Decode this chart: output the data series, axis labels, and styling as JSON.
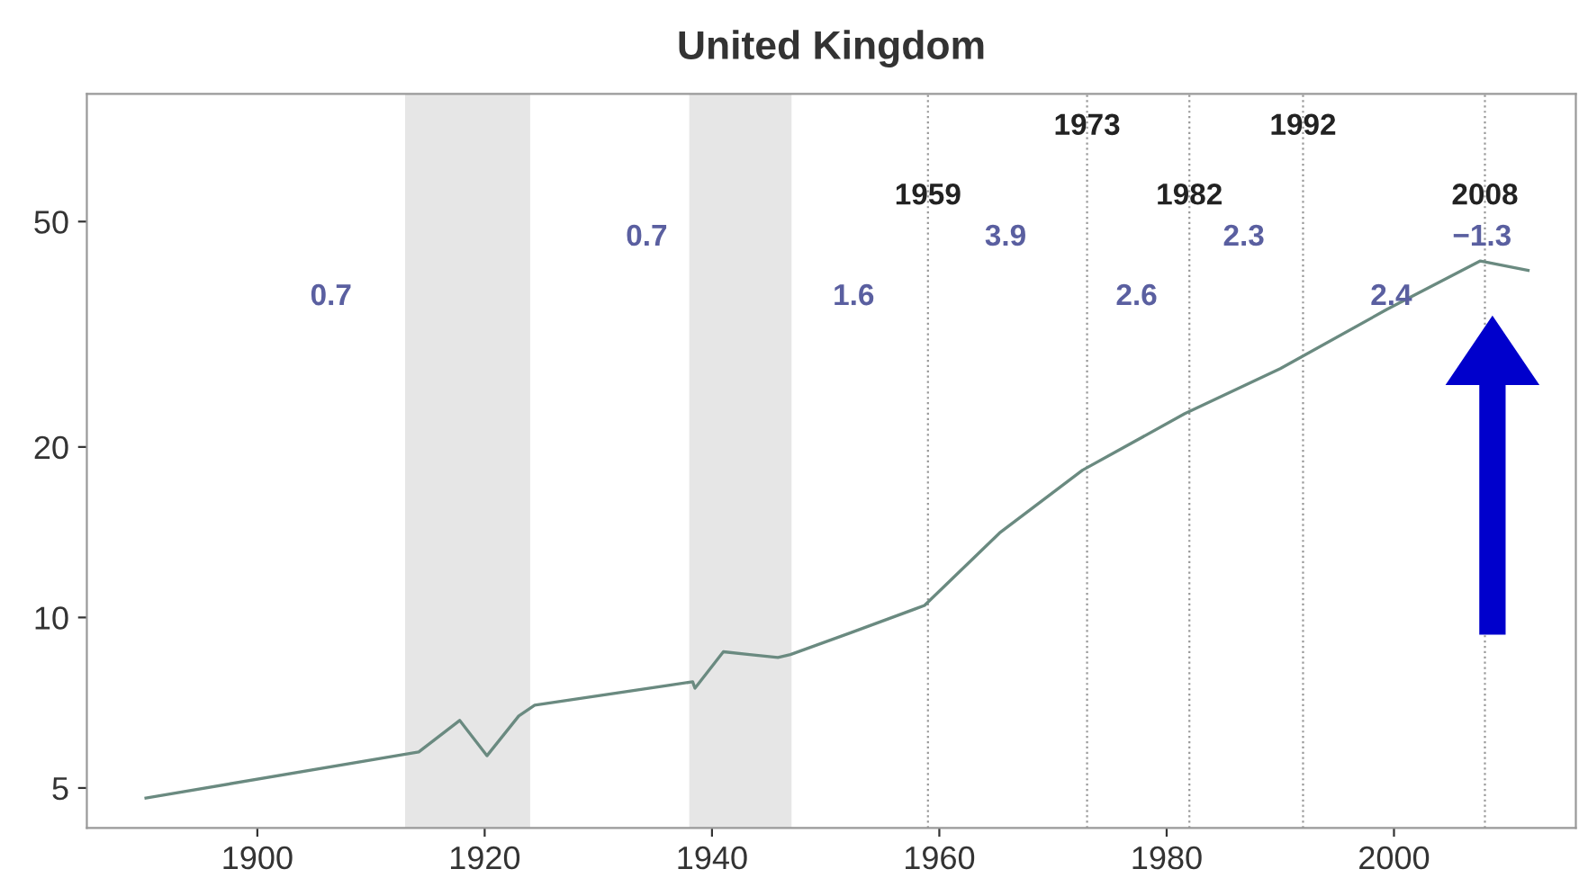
{
  "chart_data": {
    "type": "line",
    "title": "United Kingdom",
    "x": [
      1890.2,
      1914.2,
      1917.8,
      1920.2,
      1923,
      1924.4,
      1938.3,
      1938.5,
      1941,
      1943.3,
      1945.8,
      1946.9,
      1952.2,
      1958.7,
      1965.3,
      1972.6,
      1981.6,
      1990,
      1999.4,
      2007.6,
      2011.8
    ],
    "series": [
      {
        "color": "#6a8a80",
        "values": [
          4.8,
          5.79,
          6.58,
          5.7,
          6.7,
          7.0,
          7.7,
          7.5,
          8.7,
          8.6,
          8.5,
          8.6,
          9.4,
          10.5,
          14.1,
          18.2,
          22.9,
          27.5,
          35.0,
          42.6,
          41.0
        ]
      }
    ],
    "xlim": [
      1885,
      2016
    ],
    "ylim": [
      4.25,
      84
    ],
    "log": true,
    "xticks": [
      1900,
      1920,
      1940,
      1960,
      1980,
      2000
    ],
    "yticks": [
      5,
      10,
      20,
      50
    ],
    "grid": false,
    "legend": false,
    "marker": "none",
    "line_style": "solid",
    "bands": [
      {
        "axis": "x",
        "from": 1913,
        "to": 1924,
        "color": "#e6e6e6"
      },
      {
        "axis": "x",
        "from": 1938,
        "to": 1947,
        "color": "#e6e6e6"
      }
    ],
    "ref_lines": [
      {
        "axis": "x",
        "value": 1959,
        "label": "1959",
        "color": "#999999",
        "line_style": "dotted"
      },
      {
        "axis": "x",
        "value": 1973,
        "label": "1973",
        "color": "#999999",
        "line_style": "dotted"
      },
      {
        "axis": "x",
        "value": 1982,
        "label": "1982",
        "color": "#999999",
        "line_style": "dotted"
      },
      {
        "axis": "x",
        "value": 1992,
        "label": "1992",
        "color": "#999999",
        "line_style": "dotted"
      },
      {
        "axis": "x",
        "value": 2008,
        "label": "2008",
        "color": "#999999",
        "line_style": "dotted"
      }
    ],
    "annotations": [
      "0.7",
      "0.7",
      "1.6",
      "3.9",
      "2.6",
      "2.3",
      "2.4",
      "−1.3"
    ]
  }
}
